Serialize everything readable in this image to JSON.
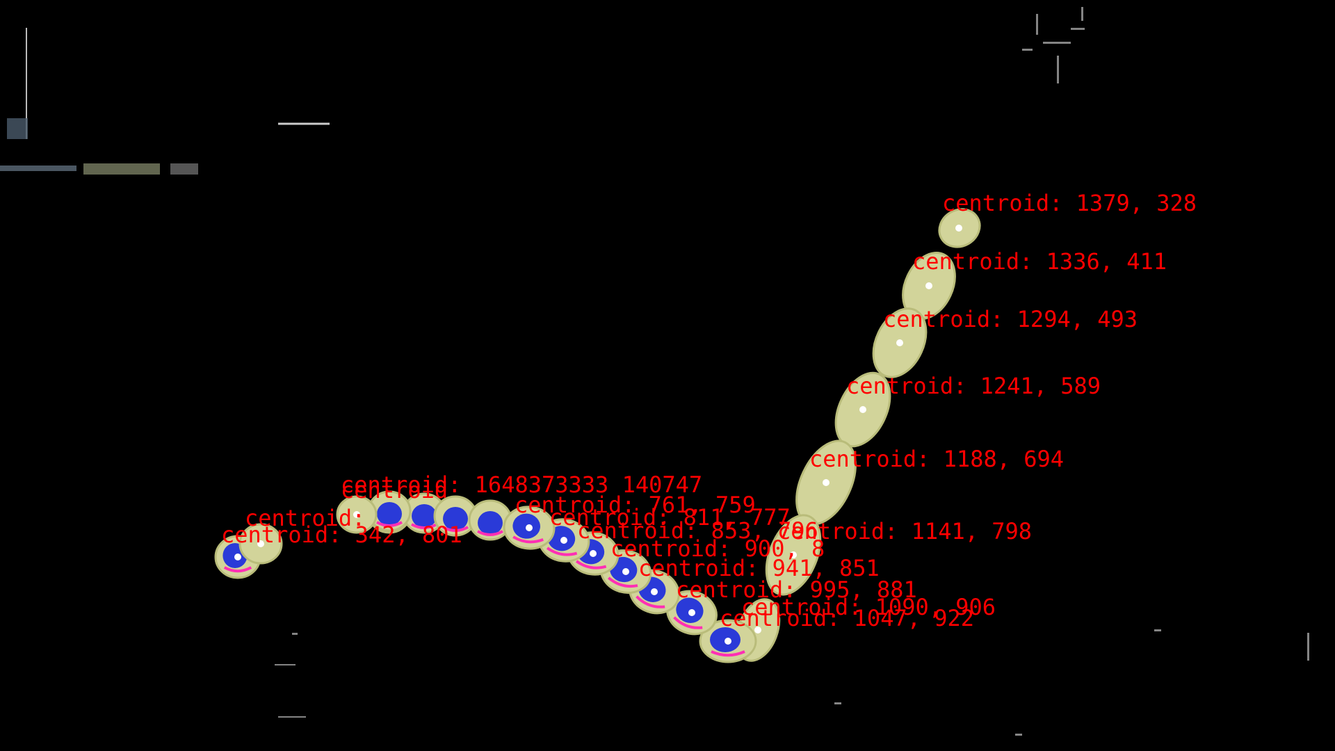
{
  "colors": {
    "background": "#000000",
    "blob": "#d2d49a",
    "blob_edge": "#b9bc7a",
    "nucleus": "#2a3ad8",
    "rim": "#ff2fb4",
    "centroid_dot": "#ffffff",
    "label": "#ff0000"
  },
  "centroids": [
    {
      "label": "centroid: 1379, 328"
    },
    {
      "label": "centroid: 1336, 411"
    },
    {
      "label": "centroid: 1294, 493"
    },
    {
      "label": "centroid: 1241, 589"
    },
    {
      "label": "centroid: 1188, 694"
    },
    {
      "label": "centroid: 1141, 798"
    },
    {
      "label": "centroid: 1090, 906"
    },
    {
      "label": "centroid: 1047, 922"
    },
    {
      "label": "centroid: 995, 881"
    },
    {
      "label": "centroid: 941, 851"
    },
    {
      "label": "centroid: 900, 8"
    },
    {
      "label": "centroid: 853, 796"
    },
    {
      "label": "centroid: 811, 777"
    },
    {
      "label": "centroid: 761, 759"
    },
    {
      "label": "centroid: 342, 801"
    },
    {
      "label": "centroid:"
    },
    {
      "label": "centroid"
    }
  ],
  "overlap_text": "centroid: 1648373333 140747"
}
